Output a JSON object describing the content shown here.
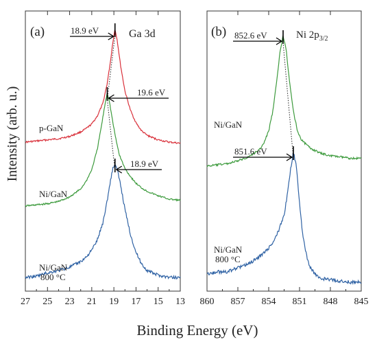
{
  "figure": {
    "ylabel": "Intensity (arb. u.)",
    "xlabel": "Binding Energy (eV)"
  },
  "chart_data": [
    {
      "type": "line",
      "panel_label": "(a)",
      "element_label": "Ga 3d",
      "xlabel": "Binding Energy (eV)",
      "ylabel": "Intensity (arb. u.)",
      "xlim": [
        27,
        13
      ],
      "x_reversed": true,
      "x_ticks": [
        "27",
        "25",
        "23",
        "21",
        "19",
        "17",
        "15",
        "13"
      ],
      "grid": false,
      "series": [
        {
          "name": "p-GaN",
          "color": "#d9303a",
          "peak_ev": 18.9,
          "peak_label": "18.9 eV",
          "x": [
            27,
            26,
            25,
            24,
            23,
            22,
            21.5,
            21,
            20.5,
            20,
            19.6,
            19.3,
            19.1,
            18.9,
            18.7,
            18.4,
            18,
            17.5,
            17,
            16.5,
            16,
            15,
            14,
            13
          ],
          "y": [
            0.0,
            0.01,
            0.02,
            0.03,
            0.05,
            0.09,
            0.12,
            0.16,
            0.23,
            0.34,
            0.52,
            0.72,
            0.88,
            1.0,
            0.9,
            0.68,
            0.45,
            0.28,
            0.17,
            0.1,
            0.06,
            0.02,
            0.0,
            -0.01
          ]
        },
        {
          "name": "Ni/GaN",
          "color": "#3c9a3c",
          "peak_ev": 19.6,
          "peak_label": "19.6 eV",
          "x": [
            27,
            26,
            25,
            24,
            23,
            22,
            21.5,
            21,
            20.5,
            20.1,
            19.8,
            19.6,
            19.4,
            19.1,
            18.8,
            18.5,
            18,
            17.5,
            17,
            16.5,
            16,
            15,
            14,
            13
          ],
          "y": [
            0.0,
            0.01,
            0.02,
            0.04,
            0.08,
            0.15,
            0.22,
            0.32,
            0.5,
            0.72,
            0.9,
            1.0,
            0.92,
            0.74,
            0.58,
            0.45,
            0.33,
            0.26,
            0.2,
            0.16,
            0.13,
            0.09,
            0.06,
            0.05
          ]
        },
        {
          "name": "Ni/GaN 800 °C",
          "color": "#2f62a4",
          "peak_ev": 18.9,
          "peak_label": "18.9 eV",
          "x": [
            27,
            26,
            25,
            24,
            23,
            22,
            21.5,
            21,
            20.5,
            20,
            19.6,
            19.3,
            19.1,
            18.9,
            18.7,
            18.4,
            18,
            17.5,
            17,
            16.5,
            16,
            15,
            14,
            13
          ],
          "y": [
            0.0,
            0.01,
            0.04,
            0.06,
            0.09,
            0.14,
            0.18,
            0.24,
            0.33,
            0.48,
            0.68,
            0.86,
            0.96,
            1.0,
            0.95,
            0.82,
            0.6,
            0.38,
            0.22,
            0.12,
            0.06,
            0.02,
            0.0,
            0.0
          ]
        }
      ]
    },
    {
      "type": "line",
      "panel_label": "(b)",
      "element_label": "Ni 2p",
      "element_sub": "3/2",
      "xlabel": "Binding Energy (eV)",
      "ylabel": "Intensity (arb. u.)",
      "xlim": [
        860,
        845
      ],
      "x_reversed": true,
      "x_ticks": [
        "860",
        "857",
        "854",
        "851",
        "848",
        "845"
      ],
      "grid": false,
      "series": [
        {
          "name": "Ni/GaN",
          "color": "#3c9a3c",
          "peak_ev": 852.6,
          "peak_label": "852.6 eV",
          "x": [
            860,
            859,
            858,
            857,
            856,
            855,
            854.5,
            854,
            853.6,
            853.2,
            852.9,
            852.6,
            852.3,
            852,
            851.6,
            851.2,
            850.8,
            850,
            849,
            848,
            847,
            846,
            845
          ],
          "y": [
            0.0,
            0.01,
            0.02,
            0.04,
            0.07,
            0.12,
            0.17,
            0.27,
            0.42,
            0.66,
            0.88,
            1.0,
            0.9,
            0.66,
            0.42,
            0.27,
            0.2,
            0.14,
            0.1,
            0.08,
            0.07,
            0.06,
            0.06
          ]
        },
        {
          "name": "Ni/GaN 800 °C",
          "color": "#2f62a4",
          "peak_ev": 851.6,
          "peak_label": "851.6 eV",
          "x": [
            860,
            859,
            858,
            857,
            856,
            855,
            854,
            853.5,
            853,
            852.5,
            852.2,
            851.9,
            851.6,
            851.3,
            851,
            850.7,
            850.3,
            850,
            849.5,
            849,
            848,
            847,
            846,
            845
          ],
          "y": [
            0.06,
            0.08,
            0.08,
            0.11,
            0.14,
            0.19,
            0.26,
            0.32,
            0.4,
            0.52,
            0.66,
            0.85,
            1.0,
            0.88,
            0.6,
            0.36,
            0.2,
            0.12,
            0.06,
            0.03,
            0.02,
            0.01,
            0.0,
            0.0
          ]
        }
      ]
    }
  ]
}
